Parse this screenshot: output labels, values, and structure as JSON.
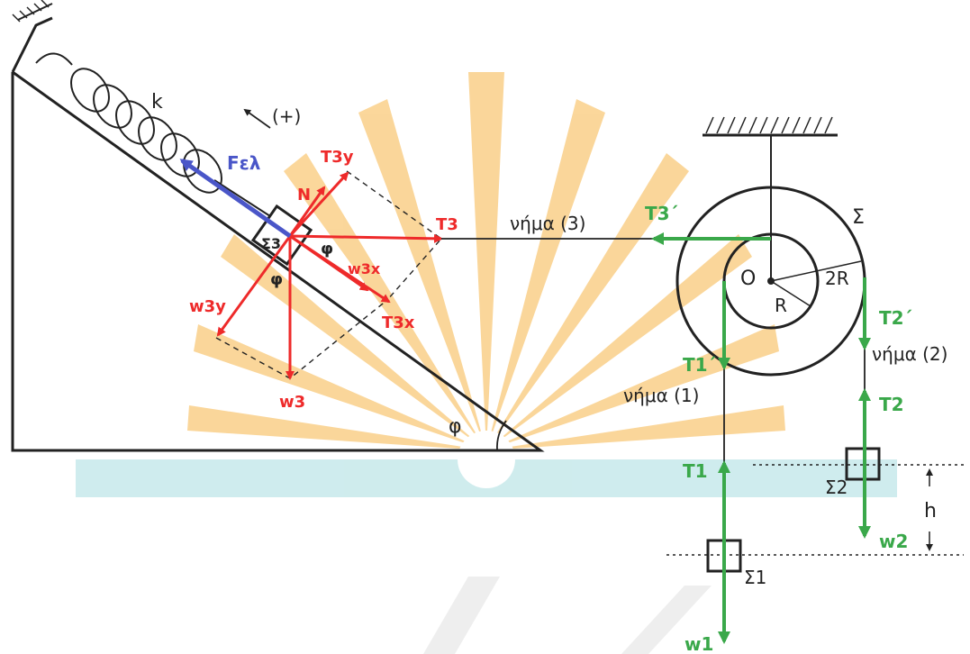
{
  "colors": {
    "force_red": "#ee2a2a",
    "force_green": "#3aa84a",
    "force_blue": "#4a56c8",
    "line": "#222222",
    "watermark_orange": "#f9c979",
    "watermark_teal": "#bfe6e8"
  },
  "labels": {
    "k": "k",
    "plus_dir": "(+)",
    "f_elastic": "Fελ",
    "t3y": "T3y",
    "n": "N",
    "sigma3": "Σ3",
    "phi_block": "φ",
    "phi_below": "φ",
    "t3": "T3",
    "thread3": "νήμα (3)",
    "w3x": "w3x",
    "t3x": "T3x",
    "w3y": "w3y",
    "w3": "w3",
    "phi_incline": "φ",
    "t3_prime": "T3΄",
    "sigma": "Σ",
    "o": "O",
    "r": "R",
    "two_r": "2R",
    "t1_prime": "T1΄",
    "t2_prime": "T2΄",
    "thread2": "νήμα (2)",
    "thread1": "νήμα (1)",
    "t2": "T2",
    "t1": "T1",
    "sigma2": "Σ2",
    "h": "h",
    "w2": "w2",
    "sigma1": "Σ1",
    "w1": "w1"
  }
}
